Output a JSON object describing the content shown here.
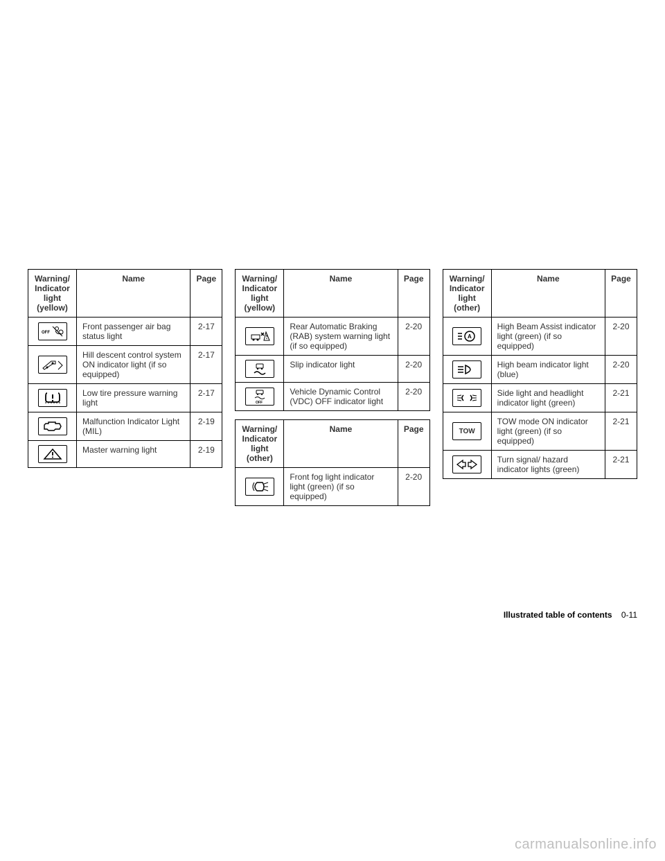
{
  "tables": [
    {
      "header": {
        "col1": "Warning/\nIndicator\nlight\n(yellow)",
        "col2": "Name",
        "col3": "Page"
      },
      "rows": [
        {
          "icon": "airbag-off",
          "name": "Front passenger air bag status light",
          "page": "2-17"
        },
        {
          "icon": "hill-descent",
          "name": "Hill descent control system ON indicator light (if so equipped)",
          "page": "2-17"
        },
        {
          "icon": "tire-pressure",
          "name": "Low tire pressure warning light",
          "page": "2-17"
        },
        {
          "icon": "engine",
          "name": "Malfunction Indicator Light (MIL)",
          "page": "2-19"
        },
        {
          "icon": "master-warning",
          "name": "Master warning light",
          "page": "2-19"
        }
      ]
    },
    {
      "header": {
        "col1": "Warning/\nIndicator\nlight\n(yellow)",
        "col2": "Name",
        "col3": "Page"
      },
      "rows": [
        {
          "icon": "rab",
          "name": "Rear Automatic Braking (RAB) system warning light (if so equipped)",
          "page": "2-20"
        },
        {
          "icon": "slip",
          "name": "Slip indicator light",
          "page": "2-20"
        },
        {
          "icon": "vdc-off",
          "name": "Vehicle Dynamic Control (VDC) OFF indicator light",
          "page": "2-20"
        }
      ]
    },
    {
      "header": {
        "col1": "Warning/\nIndicator\nlight\n(other)",
        "col2": "Name",
        "col3": "Page"
      },
      "rows": [
        {
          "icon": "fog-front",
          "name": "Front fog light indicator light (green) (if so equipped)",
          "page": "2-20"
        }
      ]
    },
    {
      "header": {
        "col1": "Warning/\nIndicator\nlight\n(other)",
        "col2": "Name",
        "col3": "Page"
      },
      "rows": [
        {
          "icon": "high-beam-assist",
          "name": "High Beam Assist indicator light (green) (if so equipped)",
          "page": "2-20"
        },
        {
          "icon": "high-beam",
          "name": "High beam indicator light (blue)",
          "page": "2-20"
        },
        {
          "icon": "side-light",
          "name": "Side light and headlight indicator light (green)",
          "page": "2-21"
        },
        {
          "icon": "tow",
          "name": "TOW mode ON indicator light (green) (if so equipped)",
          "page": "2-21"
        },
        {
          "icon": "turn-signal",
          "name": "Turn signal/ hazard indicator lights (green)",
          "page": "2-21"
        }
      ]
    }
  ],
  "footer": {
    "label": "Illustrated table of contents",
    "page": "0-11"
  },
  "watermark": "carmanualsonline.info"
}
